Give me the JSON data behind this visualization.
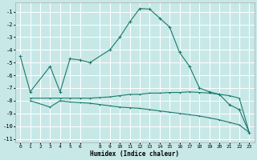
{
  "xlabel": "Humidex (Indice chaleur)",
  "bg_color": "#c8e8e8",
  "grid_color": "#ffffff",
  "line_color": "#1a7a6a",
  "xlim": [
    -0.5,
    23.5
  ],
  "ylim": [
    -11.3,
    -0.3
  ],
  "xticks": [
    0,
    1,
    2,
    3,
    4,
    5,
    6,
    8,
    9,
    10,
    11,
    12,
    13,
    14,
    15,
    16,
    17,
    18,
    19,
    20,
    21,
    22,
    23
  ],
  "yticks": [
    -11,
    -10,
    -9,
    -8,
    -7,
    -6,
    -5,
    -4,
    -3,
    -2,
    -1
  ],
  "line1_x": [
    0,
    1,
    3,
    4,
    5,
    6,
    7,
    9,
    10,
    11,
    12,
    13,
    14,
    15,
    16,
    17,
    18,
    19,
    20,
    21,
    22,
    23
  ],
  "line1_y": [
    -4.5,
    -7.3,
    -5.3,
    -7.3,
    -4.7,
    -4.8,
    -5.0,
    -4.0,
    -3.0,
    -1.8,
    -0.75,
    -0.8,
    -1.5,
    -2.2,
    -4.2,
    -5.3,
    -7.0,
    -7.3,
    -7.5,
    -8.3,
    -8.7,
    -10.5
  ],
  "line2_x": [
    1,
    3,
    4,
    5,
    6,
    7,
    8,
    9,
    10,
    11,
    12,
    13,
    14,
    15,
    16,
    17,
    18,
    19,
    20,
    21,
    22,
    23
  ],
  "line2_y": [
    -7.8,
    -7.8,
    -7.8,
    -7.8,
    -7.8,
    -7.8,
    -7.75,
    -7.7,
    -7.6,
    -7.5,
    -7.5,
    -7.4,
    -7.4,
    -7.35,
    -7.35,
    -7.3,
    -7.35,
    -7.4,
    -7.5,
    -7.6,
    -7.8,
    -10.5
  ],
  "line3_x": [
    1,
    3,
    4,
    5,
    6,
    7,
    8,
    9,
    10,
    11,
    12,
    13,
    14,
    15,
    16,
    17,
    18,
    19,
    20,
    21,
    22,
    23
  ],
  "line3_y": [
    -8.0,
    -8.5,
    -8.0,
    -8.1,
    -8.15,
    -8.2,
    -8.3,
    -8.4,
    -8.5,
    -8.55,
    -8.6,
    -8.7,
    -8.8,
    -8.9,
    -9.0,
    -9.1,
    -9.2,
    -9.35,
    -9.5,
    -9.7,
    -9.9,
    -10.5
  ]
}
